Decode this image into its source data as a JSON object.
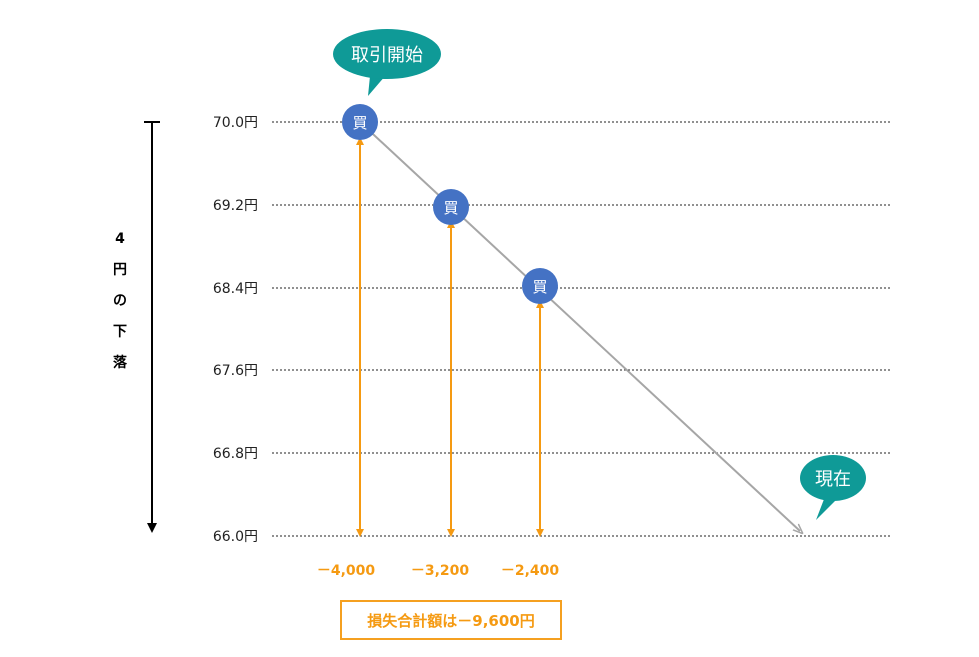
{
  "callouts": {
    "start": "取引開始",
    "now": "現在"
  },
  "range_label": [
    "4",
    "円",
    "の",
    "下",
    "落"
  ],
  "price_levels": [
    "70.0円",
    "69.2円",
    "68.4円",
    "67.6円",
    "66.8円",
    "66.0円"
  ],
  "buy_marker": "買",
  "losses": [
    "－4,000",
    "－3,200",
    "－2,400"
  ],
  "total_loss": "損失合計額は－9,600円",
  "colors": {
    "teal": "#0f9a97",
    "marker": "#4472c4",
    "orange": "#f59a12",
    "line": "#a6a6a6"
  }
}
